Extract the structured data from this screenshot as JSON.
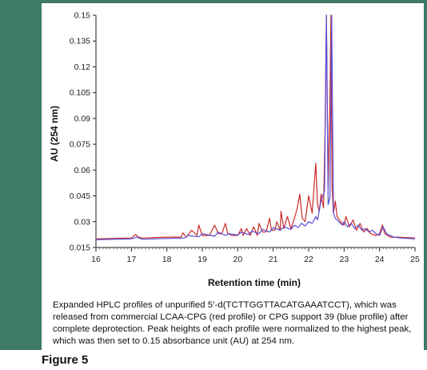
{
  "chart_data": {
    "type": "line",
    "title": "",
    "xlabel": "Retention time (min)",
    "ylabel": "AU (254 nm)",
    "xlim": [
      16,
      25
    ],
    "ylim": [
      0.015,
      0.15
    ],
    "x_ticks": [
      16,
      17,
      18,
      19,
      20,
      21,
      22,
      23,
      24,
      25
    ],
    "y_ticks": [
      0.015,
      0.03,
      0.045,
      0.06,
      0.075,
      0.09,
      0.105,
      0.12,
      0.135,
      0.15
    ],
    "y_tick_labels": [
      "0.015",
      "0.03",
      "0.045",
      "0.06",
      "0.075",
      "0.09",
      "0.105",
      "0.12",
      "0.135",
      "0.15"
    ],
    "grid": false,
    "legend": "none",
    "series": [
      {
        "color": "#cc2a2a",
        "x": [
          16.0,
          17.0,
          17.12,
          17.2,
          17.3,
          18.0,
          18.4,
          18.45,
          18.55,
          18.7,
          18.85,
          18.9,
          19.0,
          19.2,
          19.35,
          19.45,
          19.55,
          19.65,
          19.72,
          19.85,
          20.0,
          20.1,
          20.15,
          20.25,
          20.35,
          20.45,
          20.55,
          20.6,
          20.7,
          20.8,
          20.9,
          20.95,
          21.05,
          21.1,
          21.2,
          21.22,
          21.3,
          21.4,
          21.5,
          21.6,
          21.68,
          21.75,
          21.82,
          21.9,
          22.0,
          22.1,
          22.2,
          22.25,
          22.3,
          22.35,
          22.42,
          22.46,
          22.5,
          22.55,
          22.6,
          22.63,
          22.66,
          22.7,
          22.75,
          22.8,
          22.9,
          23.0,
          23.05,
          23.15,
          23.25,
          23.35,
          23.45,
          23.55,
          23.65,
          23.75,
          23.9,
          24.0,
          24.08,
          24.15,
          24.3,
          24.5,
          25.0
        ],
        "y": [
          0.02,
          0.0205,
          0.0225,
          0.021,
          0.0205,
          0.021,
          0.021,
          0.0235,
          0.021,
          0.025,
          0.022,
          0.028,
          0.022,
          0.022,
          0.028,
          0.023,
          0.023,
          0.029,
          0.023,
          0.022,
          0.022,
          0.026,
          0.022,
          0.026,
          0.022,
          0.027,
          0.022,
          0.029,
          0.024,
          0.024,
          0.032,
          0.025,
          0.025,
          0.03,
          0.025,
          0.036,
          0.026,
          0.033,
          0.026,
          0.032,
          0.038,
          0.046,
          0.032,
          0.03,
          0.045,
          0.035,
          0.064,
          0.04,
          0.036,
          0.046,
          0.038,
          0.08,
          0.15,
          0.05,
          0.1,
          0.15,
          0.05,
          0.035,
          0.042,
          0.033,
          0.03,
          0.028,
          0.033,
          0.027,
          0.031,
          0.025,
          0.029,
          0.024,
          0.026,
          0.023,
          0.022,
          0.023,
          0.028,
          0.023,
          0.021,
          0.021,
          0.0205
        ]
      },
      {
        "color": "#5a4fd6",
        "x": [
          16.0,
          17.0,
          17.15,
          17.3,
          18.0,
          18.5,
          18.6,
          18.9,
          19.0,
          19.35,
          19.45,
          19.65,
          19.75,
          20.0,
          20.1,
          20.3,
          20.4,
          20.6,
          20.7,
          20.9,
          21.0,
          21.2,
          21.3,
          21.5,
          21.6,
          21.7,
          21.8,
          21.9,
          22.0,
          22.1,
          22.2,
          22.25,
          22.35,
          22.45,
          22.5,
          22.55,
          22.6,
          22.65,
          22.7,
          22.75,
          22.85,
          22.95,
          23.0,
          23.1,
          23.2,
          23.3,
          23.4,
          23.5,
          23.6,
          23.7,
          23.8,
          23.9,
          24.0,
          24.1,
          24.2,
          24.4,
          24.6,
          25.0
        ],
        "y": [
          0.0195,
          0.02,
          0.021,
          0.0198,
          0.0202,
          0.0205,
          0.022,
          0.0212,
          0.023,
          0.0215,
          0.024,
          0.022,
          0.023,
          0.0222,
          0.024,
          0.0225,
          0.0245,
          0.023,
          0.0255,
          0.024,
          0.0265,
          0.025,
          0.027,
          0.0255,
          0.028,
          0.0265,
          0.029,
          0.0275,
          0.03,
          0.029,
          0.033,
          0.031,
          0.042,
          0.048,
          0.15,
          0.04,
          0.044,
          0.15,
          0.035,
          0.032,
          0.03,
          0.028,
          0.03,
          0.027,
          0.029,
          0.026,
          0.028,
          0.025,
          0.026,
          0.024,
          0.025,
          0.023,
          0.022,
          0.027,
          0.023,
          0.021,
          0.0205,
          0.02
        ]
      }
    ]
  },
  "caption": "Expanded HPLC profiles of unpurified 5’-d(TCTTGGTTACATGAAATCCT), which was released from commercial LCAA-CPG (red profile) or CPG support 39 (blue profile) after complete deprotection. Peak heights of each profile were normalized to the highest peak, which was then set to 0.15 absorbance unit (AU) at 254 nm.",
  "figure_label": "Figure 5",
  "colors": {
    "frame": "#3f7a66",
    "panel": "#ffffff"
  }
}
